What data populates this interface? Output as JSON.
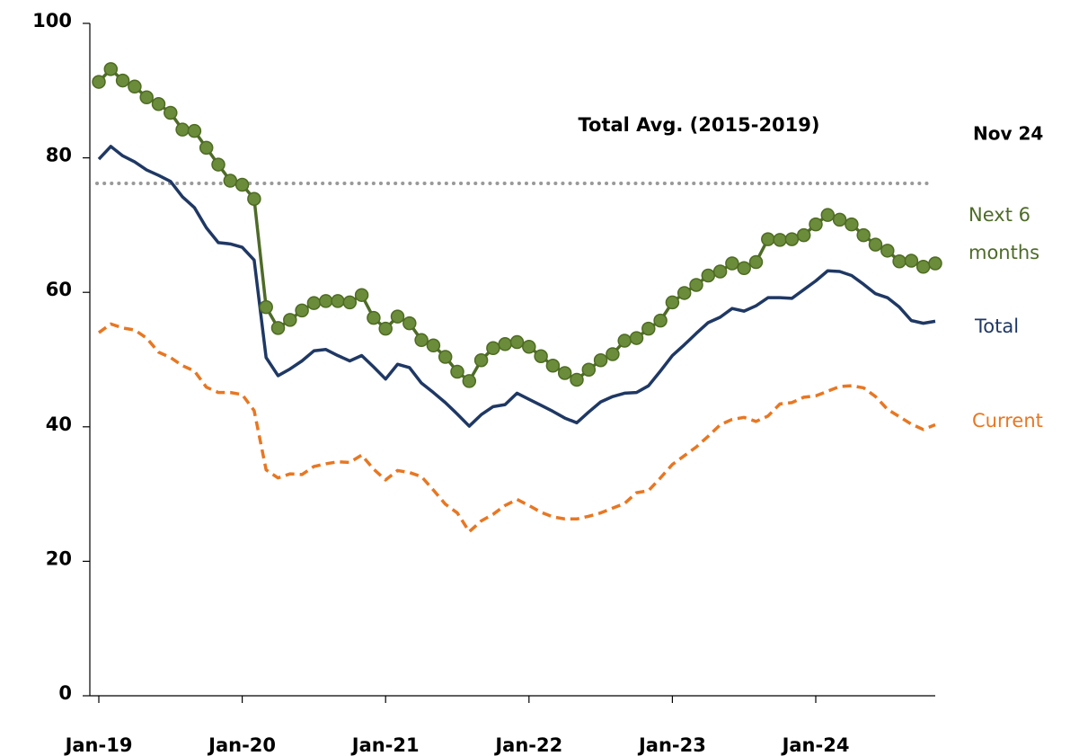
{
  "chart_data": {
    "type": "line",
    "annotation": "Nov 24",
    "reference": {
      "label": "Total Avg. (2015-2019)",
      "value": 76.2,
      "color": "#999999"
    },
    "categories": [
      "Jan-19",
      null,
      null,
      null,
      null,
      null,
      null,
      null,
      null,
      null,
      null,
      null,
      "Jan-20",
      null,
      null,
      null,
      null,
      null,
      null,
      null,
      null,
      null,
      null,
      null,
      "Jan-21",
      null,
      null,
      null,
      null,
      null,
      null,
      null,
      null,
      null,
      null,
      null,
      "Jan-22",
      null,
      null,
      null,
      null,
      null,
      null,
      null,
      null,
      null,
      null,
      null,
      "Jan-23",
      null,
      null,
      null,
      null,
      null,
      null,
      null,
      null,
      null,
      null,
      null,
      "Jan-24",
      null,
      null,
      null,
      null,
      null,
      null,
      null,
      null,
      null,
      null
    ],
    "series": [
      {
        "name": "Next 6 months",
        "color": "#4e6b28",
        "markers": true,
        "values": [
          91.3,
          93.2,
          91.5,
          90.6,
          89,
          88,
          86.7,
          84.2,
          84,
          81.5,
          79,
          76.6,
          76,
          73.9,
          57.8,
          54.7,
          55.9,
          57.3,
          58.4,
          58.7,
          58.7,
          58.5,
          59.6,
          56.2,
          54.6,
          56.4,
          55.4,
          52.9,
          52.1,
          50.4,
          48.2,
          46.8,
          49.9,
          51.7,
          52.3,
          52.6,
          51.9,
          50.5,
          49.1,
          48,
          47,
          48.5,
          49.9,
          50.8,
          52.8,
          53.2,
          54.6,
          55.8,
          58.5,
          59.9,
          61.1,
          62.5,
          63.1,
          64.3,
          63.6,
          64.5,
          67.9,
          67.8,
          67.9,
          68.5,
          70.1,
          71.5,
          70.8,
          70.1,
          68.5,
          67.1,
          66.2,
          64.6,
          64.7,
          63.8,
          64.3
        ]
      },
      {
        "name": "Total",
        "color": "#1f3864",
        "values": [
          79.8,
          81.7,
          80.3,
          79.4,
          78.2,
          77.4,
          76.5,
          74.2,
          72.6,
          69.6,
          67.4,
          67.2,
          66.7,
          64.8,
          50.3,
          47.6,
          48.6,
          49.8,
          51.3,
          51.5,
          50.6,
          49.8,
          50.6,
          48.9,
          47.1,
          49.3,
          48.8,
          46.5,
          45.1,
          43.6,
          41.9,
          40.1,
          41.8,
          43,
          43.3,
          45,
          44.1,
          43.2,
          42.3,
          41.3,
          40.6,
          42.2,
          43.7,
          44.5,
          45,
          45.1,
          46.1,
          48.3,
          50.6,
          52.2,
          53.9,
          55.5,
          56.3,
          57.6,
          57.2,
          58,
          59.2,
          59.2,
          59.1,
          60.4,
          61.7,
          63.2,
          63.1,
          62.5,
          61.2,
          59.8,
          59.2,
          57.8,
          55.8,
          55.4,
          55.7
        ]
      },
      {
        "name": "Current",
        "color": "#e87722",
        "dashed": true,
        "values": [
          54,
          55.3,
          54.7,
          54.4,
          53.2,
          51.1,
          50.3,
          49.1,
          48.3,
          45.9,
          45.1,
          45.1,
          44.8,
          42.4,
          33.6,
          32.4,
          33,
          32.9,
          34.1,
          34.5,
          34.8,
          34.7,
          35.8,
          33.7,
          32.1,
          33.5,
          33.2,
          32.6,
          30.6,
          28.5,
          27.2,
          24.4,
          26,
          27,
          28.3,
          29.2,
          28.3,
          27.3,
          26.6,
          26.3,
          26.3,
          26.7,
          27.2,
          27.9,
          28.6,
          30.2,
          30.5,
          32.4,
          34.4,
          35.7,
          37,
          38.6,
          40.3,
          41.1,
          41.4,
          40.8,
          41.6,
          43.4,
          43.6,
          44.4,
          44.6,
          45.3,
          46,
          46.1,
          45.8,
          44.5,
          42.6,
          41.5,
          40.4,
          39.6,
          40.3
        ]
      }
    ],
    "ylim": [
      0,
      100
    ],
    "yticks": [
      0,
      20,
      40,
      60,
      80,
      100
    ]
  }
}
